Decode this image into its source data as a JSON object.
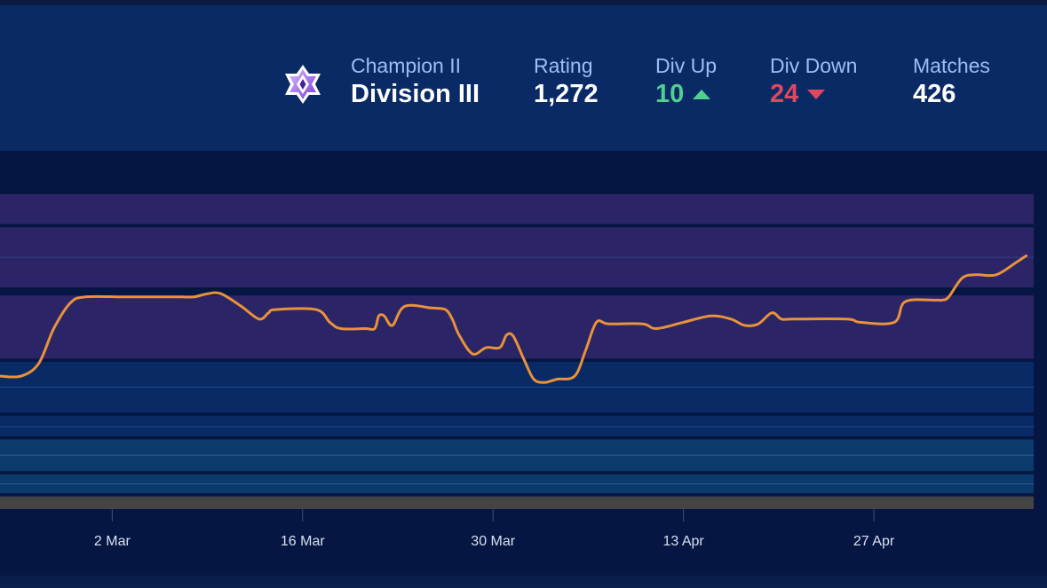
{
  "header": {
    "rank_icon": "champion-rank-icon",
    "rank_tier": "Champion II",
    "rank_division": "Division III",
    "stats": [
      {
        "label": "Rating",
        "value": "1,272",
        "trend": "none"
      },
      {
        "label": "Div Up",
        "value": "10",
        "trend": "up"
      },
      {
        "label": "Div Down",
        "value": "24",
        "trend": "down"
      },
      {
        "label": "Matches",
        "value": "426",
        "trend": "none"
      }
    ]
  },
  "colors": {
    "line": "#e8923a",
    "up": "#4fd08e",
    "down": "#e0485f",
    "header_bg": "#0a2a66"
  },
  "chart_data": {
    "type": "line",
    "title": "",
    "xlabel": "",
    "ylabel": "",
    "x_ticks": [
      "2 Mar",
      "16 Mar",
      "30 Mar",
      "13 Apr",
      "27 Apr"
    ],
    "x_tick_days": [
      12,
      26,
      40,
      54,
      68
    ],
    "xlim": [
      3.75,
      79.75
    ],
    "ylim": [
      0,
      100
    ],
    "grid": false,
    "legend": "none",
    "bands": [
      {
        "y0": 90,
        "y1": 99.5,
        "color": "#2b2466"
      },
      {
        "y0": 70,
        "y1": 89,
        "color": "#2b2466"
      },
      {
        "y0": 47.5,
        "y1": 67.5,
        "color": "#2b2466"
      },
      {
        "y0": 30.5,
        "y1": 46.5,
        "color": "#0a2a66"
      },
      {
        "y0": 23,
        "y1": 29.5,
        "color": "#0a2a66"
      },
      {
        "y0": 12,
        "y1": 22,
        "color": "#0b3b6c"
      },
      {
        "y0": 5,
        "y1": 11,
        "color": "#0b3b6c"
      },
      {
        "y0": 0,
        "y1": 4,
        "color": "#444444"
      }
    ],
    "series": [
      {
        "values": [
          [
            3.8,
            42
          ],
          [
            5.3,
            42
          ],
          [
            6.6,
            46
          ],
          [
            7.7,
            57
          ],
          [
            8.9,
            65
          ],
          [
            10,
            67
          ],
          [
            13,
            67
          ],
          [
            17,
            67
          ],
          [
            18,
            67
          ],
          [
            19,
            68
          ],
          [
            20,
            68
          ],
          [
            21.5,
            64
          ],
          [
            22.8,
            60
          ],
          [
            23.5,
            62
          ],
          [
            24,
            63
          ],
          [
            27,
            63
          ],
          [
            28,
            59
          ],
          [
            28.8,
            57
          ],
          [
            30.6,
            57
          ],
          [
            31.3,
            57
          ],
          [
            31.6,
            61
          ],
          [
            32,
            61
          ],
          [
            32.6,
            58
          ],
          [
            33.5,
            64
          ],
          [
            35.5,
            63.5
          ],
          [
            36.5,
            63
          ],
          [
            37,
            60
          ],
          [
            37.5,
            55
          ],
          [
            38.5,
            49
          ],
          [
            39.5,
            51
          ],
          [
            40.5,
            51
          ],
          [
            41,
            55
          ],
          [
            41.5,
            54.5
          ],
          [
            42.3,
            47
          ],
          [
            43,
            41
          ],
          [
            43.8,
            40
          ],
          [
            44.7,
            41
          ],
          [
            46,
            42
          ],
          [
            46.8,
            50
          ],
          [
            47.6,
            59
          ],
          [
            48.5,
            58.5
          ],
          [
            51,
            58.5
          ],
          [
            52,
            57
          ],
          [
            54,
            59
          ],
          [
            56,
            61
          ],
          [
            57.5,
            60
          ],
          [
            58.5,
            58
          ],
          [
            59.5,
            58.5
          ],
          [
            60.5,
            62
          ],
          [
            61.2,
            60
          ],
          [
            62,
            60
          ],
          [
            66,
            60
          ],
          [
            67,
            59
          ],
          [
            69.5,
            59
          ],
          [
            70.3,
            65.5
          ],
          [
            72.5,
            66
          ],
          [
            73,
            66
          ],
          [
            73.5,
            67
          ],
          [
            74.5,
            73
          ],
          [
            75.5,
            74
          ],
          [
            77,
            74
          ],
          [
            78.5,
            78
          ],
          [
            79.2,
            80
          ]
        ]
      }
    ]
  }
}
